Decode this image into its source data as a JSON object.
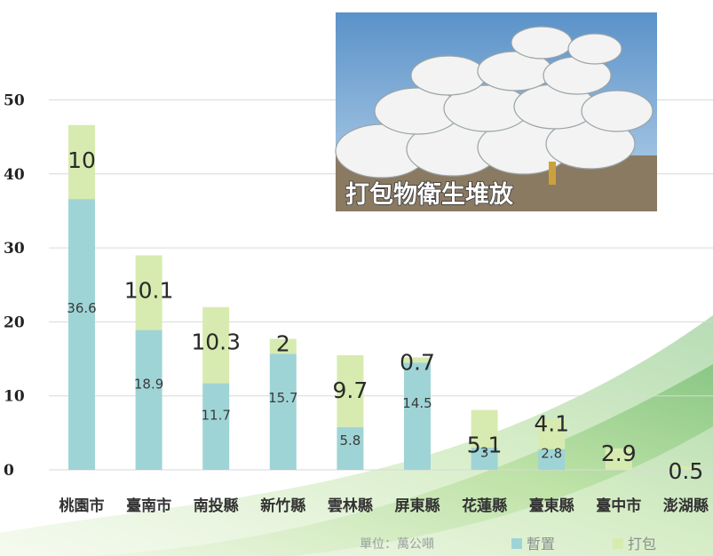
{
  "chart_data": {
    "type": "bar",
    "stacked": true,
    "categories": [
      "桃園市",
      "臺南市",
      "南投縣",
      "新竹縣",
      "雲林縣",
      "屏東縣",
      "花蓮縣",
      "臺東縣",
      "臺中市",
      "澎湖縣"
    ],
    "series": [
      {
        "name": "暫置",
        "values": [
          36.6,
          18.9,
          11.7,
          15.7,
          5.8,
          14.5,
          3,
          2.8,
          0,
          0
        ],
        "labels": [
          "36.6",
          "18.9",
          "11.7",
          "15.7",
          "5.8",
          "14.5",
          "3",
          "2.8",
          "",
          ""
        ]
      },
      {
        "name": "打包",
        "values": [
          10,
          10.1,
          10.3,
          2,
          9.7,
          0.7,
          5.1,
          4.1,
          2.9,
          0.5
        ],
        "labels": [
          "10",
          "10.1",
          "10.3",
          "2",
          "9.7",
          "0.7",
          "5.1",
          "4.1",
          "2.9",
          "0.5"
        ]
      }
    ],
    "ylim": [
      0,
      50
    ],
    "yticks": [
      "0",
      "10",
      "20",
      "30",
      "40",
      "50"
    ],
    "grid": true,
    "legend": "bottom-right",
    "unit": "單位：萬公噸"
  },
  "photo": {
    "caption": "打包物衛生堆放"
  },
  "colors": {
    "series_1": "#9fd4d6",
    "series_2": "#d7ebb0",
    "grid": "#d9d9d9",
    "swoosh": "#8cc96a"
  }
}
